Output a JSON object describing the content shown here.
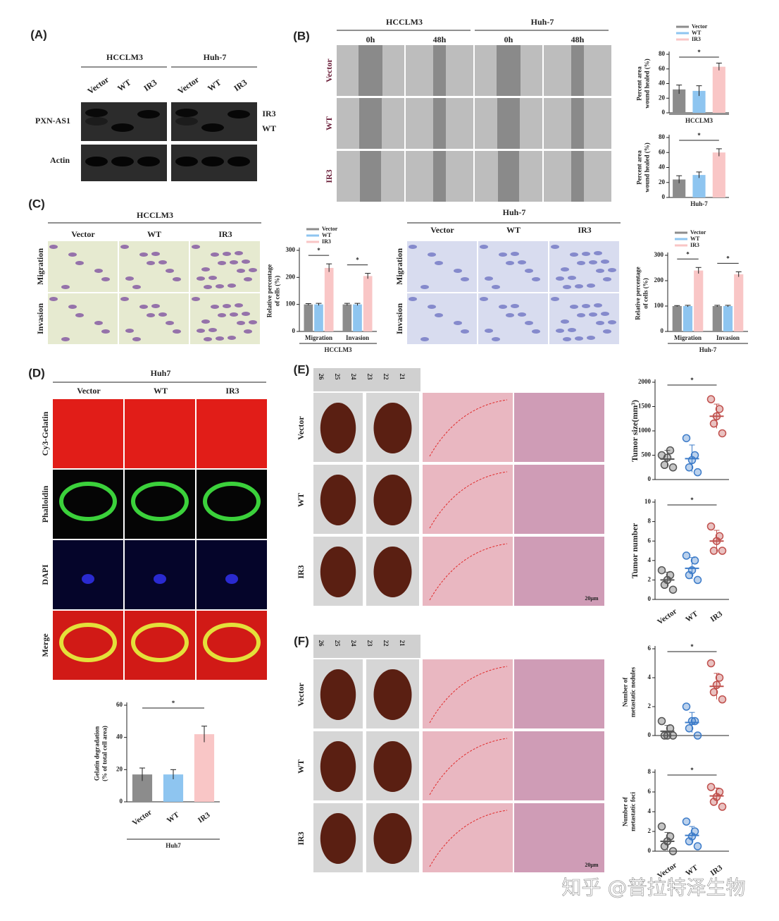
{
  "panels": {
    "A": {
      "label": "(A)",
      "groups": [
        "HCCLM3",
        "Huh-7"
      ],
      "lanes": [
        "Vector",
        "WT",
        "IR3"
      ],
      "rows": [
        "PXN-AS1",
        "Actin"
      ],
      "bands": [
        "IR3",
        "WT"
      ]
    },
    "B": {
      "label": "(B)",
      "groups": [
        "HCCLM3",
        "Huh-7"
      ],
      "times": [
        "0h",
        "48h"
      ],
      "rows": [
        "Vector",
        "WT",
        "IR3"
      ]
    },
    "C": {
      "label": "(C)",
      "groups": [
        "HCCLM3",
        "Huh-7"
      ],
      "cols": [
        "Vector",
        "WT",
        "IR3"
      ],
      "rows": [
        "Migration",
        "Invasion"
      ]
    },
    "D": {
      "label": "(D)",
      "group": "Huh7",
      "cols": [
        "Vector",
        "WT",
        "IR3"
      ],
      "rows": [
        "Cy3-Gelatin",
        "Phalloidin",
        "DAPI",
        "Merge"
      ]
    },
    "E": {
      "label": "(E)",
      "rows": [
        "Vector",
        "WT",
        "IR3"
      ],
      "ruler": [
        "26",
        "25",
        "24",
        "23",
        "22",
        "21"
      ],
      "scale": "20μm"
    },
    "F": {
      "label": "(F)",
      "rows": [
        "Vector",
        "WT",
        "IR3"
      ],
      "ruler": [
        "26",
        "25",
        "24",
        "23",
        "22",
        "21"
      ],
      "scale": "20μm"
    }
  },
  "watermark": "知乎 @普拉特泽生物",
  "chart_data": [
    {
      "type": "bar",
      "categories": [
        "Vector",
        "WT",
        "IR3"
      ],
      "values": [
        32,
        30,
        63
      ],
      "errors": [
        6,
        7,
        5
      ],
      "colors": [
        "#8c8c8c",
        "#8ec5f0",
        "#f9c6c6"
      ],
      "ylabel": [
        "Percent area",
        "wound healed (%)"
      ],
      "xlabel": "HCCLM3",
      "ylim": [
        0,
        80
      ],
      "yticks": [
        0,
        20,
        40,
        60,
        80
      ],
      "significance": [
        "*"
      ],
      "legend": "top"
    },
    {
      "type": "bar",
      "categories": [
        null,
        null,
        null
      ],
      "values": [
        24,
        30,
        60
      ],
      "errors": [
        5,
        4,
        5
      ],
      "colors": [
        "#8c8c8c",
        "#8ec5f0",
        "#f9c6c6"
      ],
      "ylabel": [
        "Percent area",
        "wound healed (%)"
      ],
      "xlabel": "Huh-7",
      "ylim": [
        0,
        80
      ],
      "yticks": [
        0,
        20,
        40,
        60,
        80
      ],
      "significance": [
        "*"
      ]
    },
    {
      "type": "bar",
      "categories": [
        "Migration",
        "Invasion"
      ],
      "series": [
        {
          "name": "Vector",
          "color": "#8c8c8c",
          "values": [
            100,
            100
          ],
          "errors": [
            3,
            4
          ]
        },
        {
          "name": "WT",
          "color": "#8ec5f0",
          "values": [
            100,
            100
          ],
          "errors": [
            4,
            4
          ]
        },
        {
          "name": "IR3",
          "color": "#f9c6c6",
          "values": [
            235,
            205
          ],
          "errors": [
            15,
            10
          ]
        }
      ],
      "ylabel": [
        "Relative percentage",
        "of cells (%)"
      ],
      "xlabel": "HCCLM3",
      "ylim": [
        0,
        300
      ],
      "yticks": [
        0,
        100,
        200,
        300
      ],
      "significance": [
        "*",
        "*"
      ],
      "legend": "top"
    },
    {
      "type": "bar",
      "categories": [
        "Migration",
        "Invasion"
      ],
      "series": [
        {
          "name": "Vector",
          "color": "#8c8c8c",
          "values": [
            100,
            100
          ],
          "errors": [
            2,
            3
          ]
        },
        {
          "name": "WT",
          "color": "#8ec5f0",
          "values": [
            100,
            100
          ],
          "errors": [
            3,
            3
          ]
        },
        {
          "name": "IR3",
          "color": "#f9c6c6",
          "values": [
            240,
            225
          ],
          "errors": [
            12,
            10
          ]
        }
      ],
      "ylabel": [
        "Relative percentage",
        "of cells (%)"
      ],
      "xlabel": "Huh-7",
      "ylim": [
        0,
        300
      ],
      "yticks": [
        0,
        100,
        200,
        300
      ],
      "significance": [
        "*",
        "*"
      ],
      "legend": "top"
    },
    {
      "type": "bar",
      "categories": [
        "Vector",
        "WT",
        "IR3"
      ],
      "values": [
        17,
        17,
        42
      ],
      "errors": [
        4,
        3,
        5
      ],
      "colors": [
        "#8c8c8c",
        "#8ec5f0",
        "#f9c6c6"
      ],
      "ylabel": [
        "Gelatin degradation",
        "(% of total cell area)"
      ],
      "xlabel": "Huh7",
      "ylim": [
        0,
        60
      ],
      "yticks": [
        0,
        20,
        40,
        60
      ],
      "significance": [
        "*"
      ]
    },
    {
      "type": "dot",
      "categories": [
        null,
        null,
        null
      ],
      "values": [
        420,
        430,
        1300
      ],
      "errors": [
        180,
        280,
        250
      ],
      "points": [
        [
          250,
          300,
          450,
          600,
          500
        ],
        [
          150,
          250,
          400,
          500,
          850
        ],
        [
          950,
          1150,
          1300,
          1450,
          1650
        ]
      ],
      "colors": [
        "#555555",
        "#3d7cc9",
        "#c0504d"
      ],
      "ylabel": [
        "Tumor size(mm³)"
      ],
      "ylim": [
        0,
        2000
      ],
      "yticks": [
        0,
        500,
        1000,
        1500,
        2000
      ],
      "significance": [
        "*"
      ]
    },
    {
      "type": "dot",
      "categories": [
        "Vector",
        "WT",
        "IR3"
      ],
      "values": [
        2,
        3.2,
        6
      ],
      "errors": [
        0.8,
        1.1,
        1.1
      ],
      "points": [
        [
          1,
          1.5,
          2,
          2.5,
          3
        ],
        [
          2,
          2.5,
          3,
          4,
          4.5
        ],
        [
          5,
          5,
          6,
          6.5,
          7.5
        ]
      ],
      "colors": [
        "#555555",
        "#3d7cc9",
        "#c0504d"
      ],
      "ylabel": [
        "Tumor number"
      ],
      "ylim": [
        0,
        10
      ],
      "yticks": [
        0,
        2,
        4,
        6,
        8,
        10
      ],
      "significance": [
        "*"
      ]
    },
    {
      "type": "dot",
      "categories": [
        null,
        null,
        null
      ],
      "values": [
        0.3,
        0.9,
        3.4
      ],
      "errors": [
        0.4,
        0.7,
        0.9
      ],
      "points": [
        [
          0,
          0,
          0,
          0.5,
          1
        ],
        [
          0,
          0.5,
          1,
          1,
          2
        ],
        [
          2.5,
          3,
          3.5,
          4,
          5
        ]
      ],
      "colors": [
        "#555555",
        "#3d7cc9",
        "#c0504d"
      ],
      "ylabel": [
        "Number of",
        "metastatic nodules"
      ],
      "ylim": [
        0,
        6
      ],
      "yticks": [
        0,
        2,
        4,
        6
      ],
      "significance": [
        "*"
      ]
    },
    {
      "type": "dot",
      "categories": [
        "Vector",
        "WT",
        "IR3"
      ],
      "values": [
        1,
        1.6,
        5.6
      ],
      "errors": [
        0.9,
        0.9,
        0.8
      ],
      "points": [
        [
          0,
          0.5,
          1,
          1.5,
          2.5
        ],
        [
          0.5,
          1,
          1.5,
          2,
          3
        ],
        [
          4.5,
          5,
          5.5,
          6,
          6.5
        ]
      ],
      "colors": [
        "#555555",
        "#3d7cc9",
        "#c0504d"
      ],
      "ylabel": [
        "Number of",
        "metastatic foci"
      ],
      "ylim": [
        0,
        8
      ],
      "yticks": [
        0,
        2,
        4,
        6,
        8
      ],
      "significance": [
        "*"
      ]
    }
  ]
}
